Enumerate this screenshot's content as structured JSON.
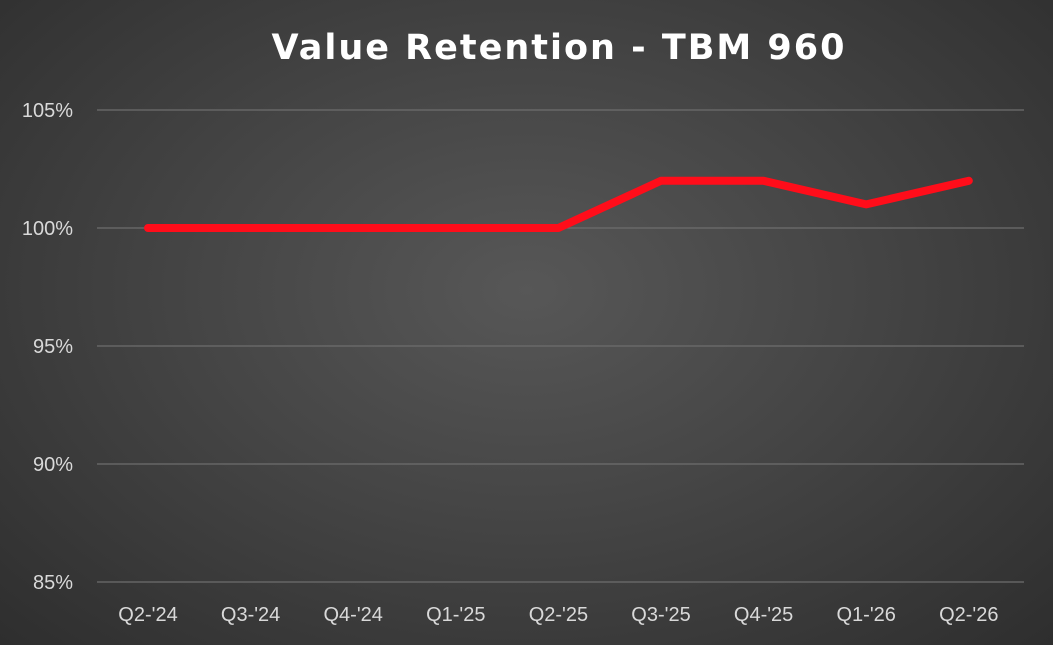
{
  "chart_data": {
    "type": "line",
    "title": "Value Retention - TBM 960",
    "xlabel": "",
    "ylabel": "",
    "categories": [
      "Q2-'24",
      "Q3-'24",
      "Q4-'24",
      "Q1-'25",
      "Q2-'25",
      "Q3-'25",
      "Q4-'25",
      "Q1-'26",
      "Q2-'26"
    ],
    "series": [
      {
        "values": [
          100,
          100,
          100,
          100,
          100,
          102,
          102,
          101,
          102
        ],
        "color": "#ff0d1a"
      }
    ],
    "y_ticks": [
      "105%",
      "100%",
      "95%",
      "90%",
      "85%"
    ],
    "y_tick_values": [
      105,
      100,
      95,
      90,
      85
    ],
    "ylim": [
      85,
      105
    ],
    "grid": true,
    "legend": "none",
    "colors": {
      "background": "#454545",
      "gridline": "#6e6e6e",
      "text": "#d9d9d9",
      "title": "#ffffff"
    }
  }
}
